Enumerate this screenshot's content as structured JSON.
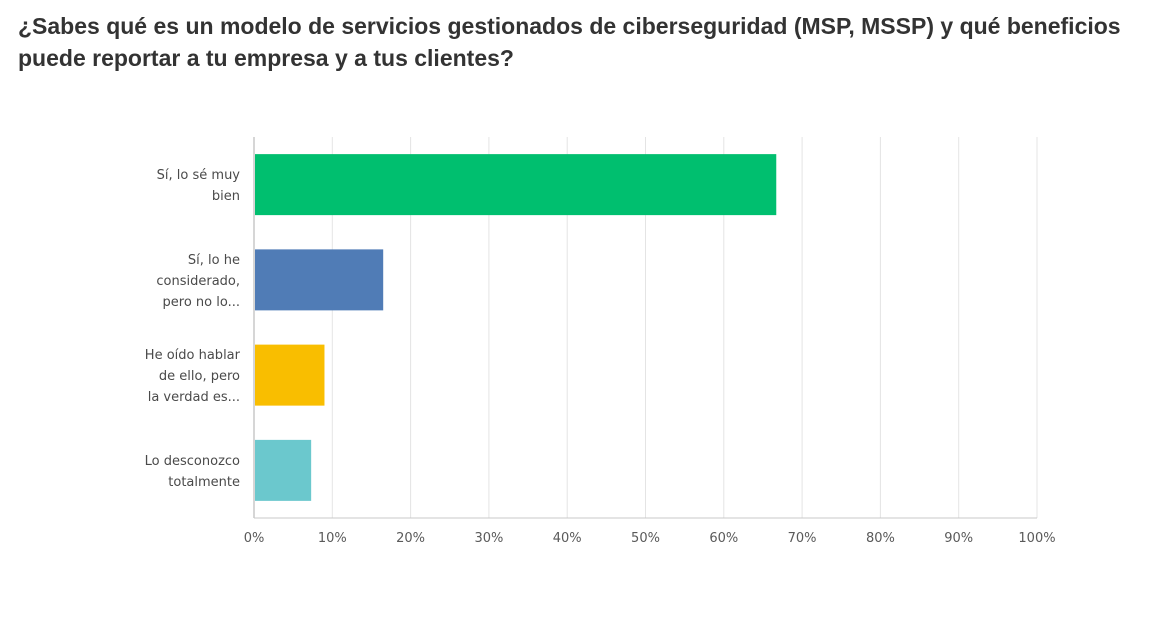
{
  "title": "¿Sabes qué es un modelo de servicios gestionados de ciberseguridad (MSP, MSSP) y qué beneficios puede reportar a tu empresa y a tus clientes?",
  "chart_data": {
    "type": "bar",
    "orientation": "horizontal",
    "title": "¿Sabes qué es un modelo de servicios gestionados de ciberseguridad (MSP, MSSP) y qué beneficios puede reportar a tu empresa y a tus clientes?",
    "xlabel": "",
    "ylabel": "",
    "xlim": [
      0,
      100
    ],
    "grid": true,
    "categories": [
      [
        "Sí, lo sé muy",
        "bien"
      ],
      [
        "Sí, lo he",
        "considerado,",
        "pero no lo..."
      ],
      [
        "He oído hablar",
        "de ello, pero",
        "la verdad es..."
      ],
      [
        "Lo desconozco",
        "totalmente"
      ]
    ],
    "values": [
      66.7,
      16.5,
      9.0,
      7.3
    ],
    "colors": [
      "#00bf6f",
      "#507cb6",
      "#f9be00",
      "#6bc8cd"
    ],
    "ticks": [
      0,
      10,
      20,
      30,
      40,
      50,
      60,
      70,
      80,
      90,
      100
    ],
    "tick_labels": [
      "0%",
      "10%",
      "20%",
      "30%",
      "40%",
      "50%",
      "60%",
      "70%",
      "80%",
      "90%",
      "100%"
    ]
  }
}
